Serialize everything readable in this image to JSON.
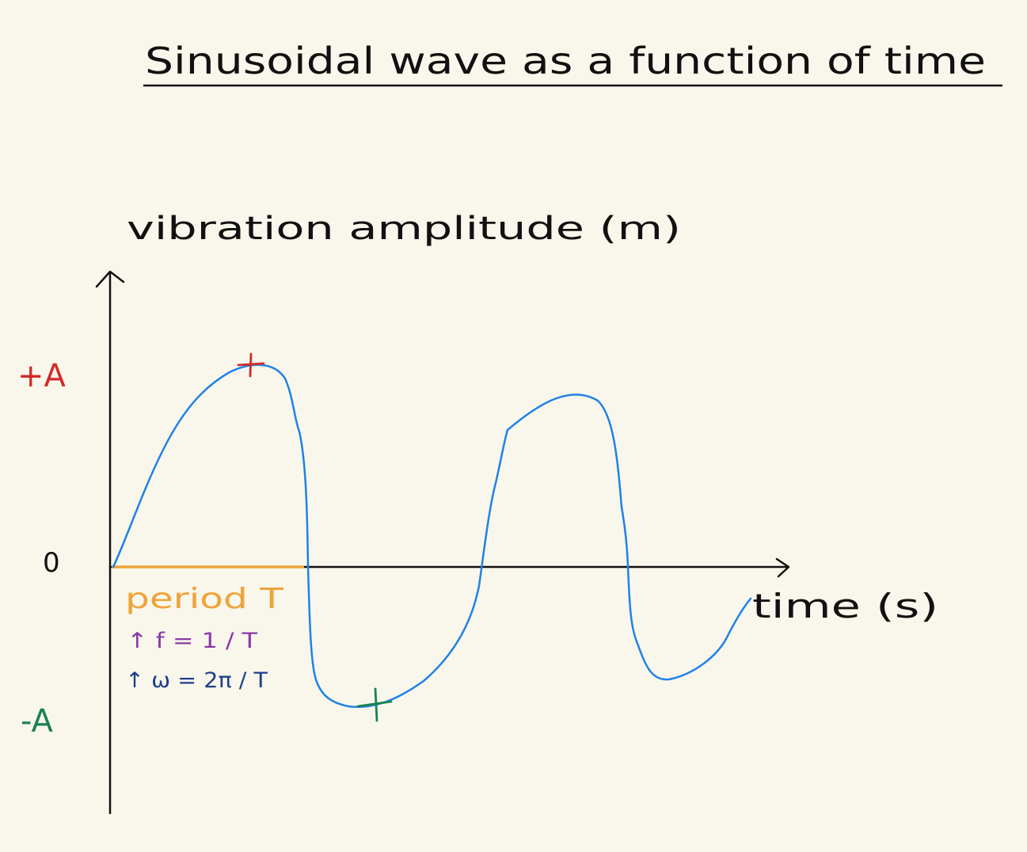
{
  "title": "Sinusoidal wave as a function of time",
  "y_axis_label": "vibration amplitude (m)",
  "x_axis_label": "time (s)",
  "labels": {
    "plus_a": "+A",
    "zero": "0",
    "minus_a": "-A",
    "period": "period T",
    "frequency": "↑ f = 1 / T",
    "angular_frequency": "↑ ω = 2π / T"
  },
  "colors": {
    "background": "#f9f7ec",
    "ink": "#111111",
    "wave": "#1f82e6",
    "plus_a": "#d42a2a",
    "minus_a": "#1a8055",
    "period": "#f0a33a",
    "frequency": "#8a3aa6",
    "angular_frequency": "#1e3f8a"
  }
}
